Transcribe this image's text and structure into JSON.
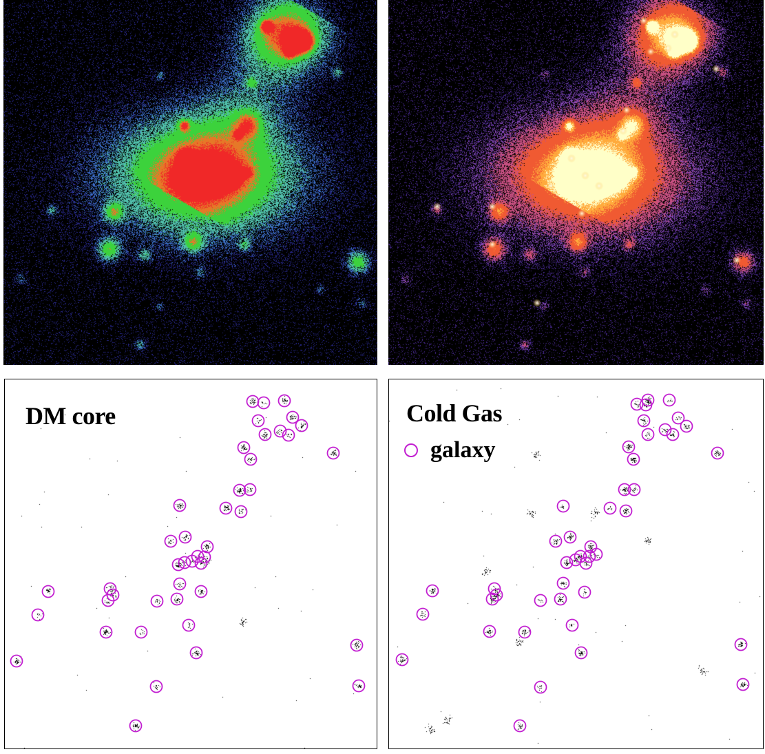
{
  "panels": {
    "dm_density": {
      "colormap": "blue-green-red"
    },
    "gas_density": {
      "colormap": "purple-orange-white"
    },
    "dm_core": {
      "title": "DM core"
    },
    "cold_gas": {
      "title": "Cold Gas",
      "legend_label": "galaxy",
      "legend_symbol_color": "#c21fd1"
    }
  },
  "colors": {
    "circle": "#c21fd1",
    "points": "#000000"
  }
}
